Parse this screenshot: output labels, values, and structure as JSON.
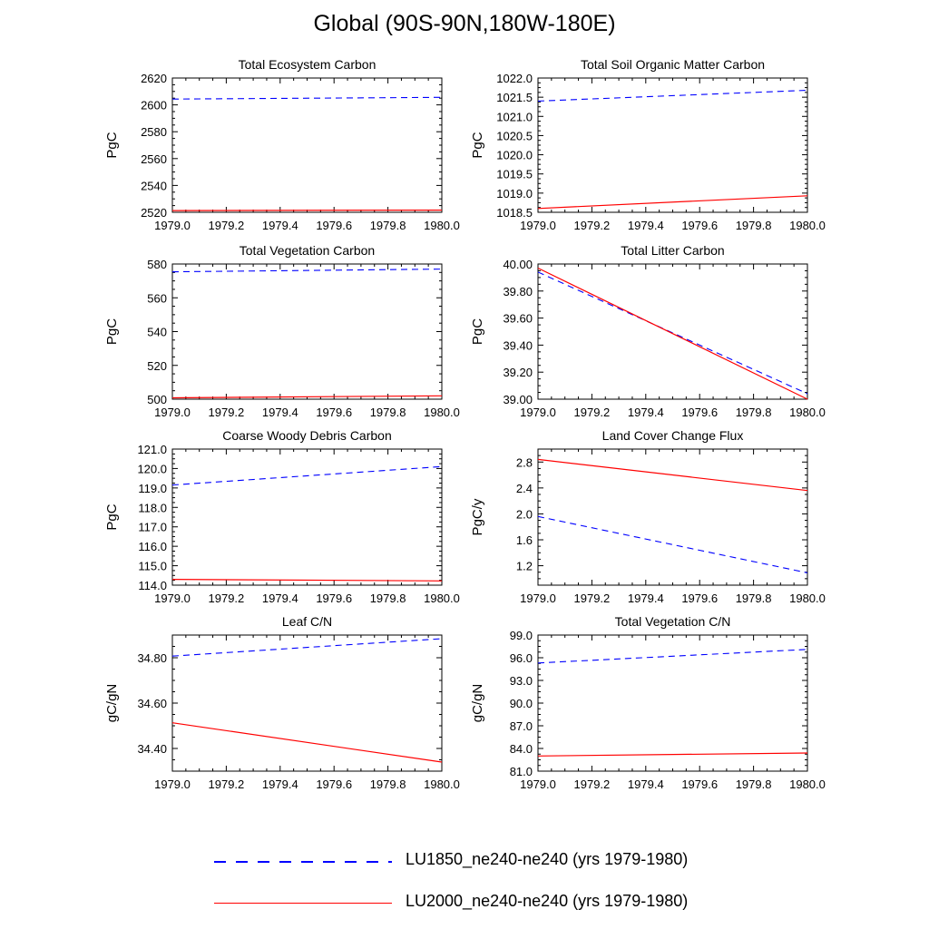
{
  "figure": {
    "title": "Global (90S-90N,180W-180E)"
  },
  "legend": [
    {
      "label": "LU1850_ne240-ne240 (yrs 1979-1980)",
      "color": "#0000ff",
      "style": "dashed"
    },
    {
      "label": "LU2000_ne240-ne240 (yrs 1979-1980)",
      "color": "#ff0000",
      "style": "solid"
    }
  ],
  "chart_data": [
    {
      "type": "line",
      "title": "Total Ecosystem Carbon",
      "ylabel": "PgC",
      "xlim": [
        1979.0,
        1980.0
      ],
      "ylim": [
        2520,
        2620
      ],
      "xticks": [
        "1979.0",
        "1979.2",
        "1979.4",
        "1979.6",
        "1979.8",
        "1980.0"
      ],
      "yticks": [
        "2520",
        "2540",
        "2560",
        "2580",
        "2600",
        "2620"
      ],
      "x": [
        1979.0,
        1980.0
      ],
      "series": [
        {
          "values": [
            2604.3,
            2605.6
          ]
        },
        {
          "values": [
            2521.3,
            2521.6
          ]
        }
      ]
    },
    {
      "type": "line",
      "title": "Total Soil Organic Matter Carbon",
      "ylabel": "PgC",
      "xlim": [
        1979.0,
        1980.0
      ],
      "ylim": [
        1018.5,
        1022.0
      ],
      "xticks": [
        "1979.0",
        "1979.2",
        "1979.4",
        "1979.6",
        "1979.8",
        "1980.0"
      ],
      "yticks": [
        "1018.5",
        "1019.0",
        "1019.5",
        "1020.0",
        "1020.5",
        "1021.0",
        "1021.5",
        "1022.0"
      ],
      "x": [
        1979.0,
        1980.0
      ],
      "series": [
        {
          "values": [
            1021.4,
            1021.68
          ]
        },
        {
          "values": [
            1018.6,
            1018.93
          ]
        }
      ]
    },
    {
      "type": "line",
      "title": "Total Vegetation Carbon",
      "ylabel": "PgC",
      "xlim": [
        1979.0,
        1980.0
      ],
      "ylim": [
        500,
        580
      ],
      "xticks": [
        "1979.0",
        "1979.2",
        "1979.4",
        "1979.6",
        "1979.8",
        "1980.0"
      ],
      "yticks": [
        "500",
        "520",
        "540",
        "560",
        "580"
      ],
      "x": [
        1979.0,
        1980.0
      ],
      "series": [
        {
          "values": [
            575.4,
            577.0
          ]
        },
        {
          "values": [
            500.8,
            502.0
          ]
        }
      ]
    },
    {
      "type": "line",
      "title": "Total Litter Carbon",
      "ylabel": "PgC",
      "xlim": [
        1979.0,
        1980.0
      ],
      "ylim": [
        39.0,
        40.0
      ],
      "xticks": [
        "1979.0",
        "1979.2",
        "1979.4",
        "1979.6",
        "1979.8",
        "1980.0"
      ],
      "yticks": [
        "39.00",
        "39.20",
        "39.40",
        "39.60",
        "39.80",
        "40.00"
      ],
      "x": [
        1979.0,
        1980.0
      ],
      "series": [
        {
          "values": [
            39.94,
            39.04
          ]
        },
        {
          "values": [
            39.97,
            39.0
          ]
        }
      ]
    },
    {
      "type": "line",
      "title": "Coarse Woody Debris Carbon",
      "ylabel": "PgC",
      "xlim": [
        1979.0,
        1980.0
      ],
      "ylim": [
        114.0,
        121.0
      ],
      "xticks": [
        "1979.0",
        "1979.2",
        "1979.4",
        "1979.6",
        "1979.8",
        "1980.0"
      ],
      "yticks": [
        "114.0",
        "115.0",
        "116.0",
        "117.0",
        "118.0",
        "119.0",
        "120.0",
        "121.0"
      ],
      "x": [
        1979.0,
        1980.0
      ],
      "series": [
        {
          "values": [
            119.15,
            120.1
          ]
        },
        {
          "values": [
            114.3,
            114.22
          ]
        }
      ]
    },
    {
      "type": "line",
      "title": "Land Cover Change Flux",
      "ylabel": "PgC/y",
      "xlim": [
        1979.0,
        1980.0
      ],
      "ylim": [
        0.9,
        3.0
      ],
      "xticks": [
        "1979.0",
        "1979.2",
        "1979.4",
        "1979.6",
        "1979.8",
        "1980.0"
      ],
      "yticks": [
        "1.2",
        "1.6",
        "2.0",
        "2.4",
        "2.8"
      ],
      "x": [
        1979.0,
        1980.0
      ],
      "series": [
        {
          "values": [
            1.96,
            1.09
          ]
        },
        {
          "values": [
            2.84,
            2.36
          ]
        }
      ]
    },
    {
      "type": "line",
      "title": "Leaf C/N",
      "ylabel": "gC/gN",
      "xlim": [
        1979.0,
        1980.0
      ],
      "ylim": [
        34.3,
        34.9
      ],
      "xticks": [
        "1979.0",
        "1979.2",
        "1979.4",
        "1979.6",
        "1979.8",
        "1980.0"
      ],
      "yticks": [
        "34.40",
        "34.60",
        "34.80"
      ],
      "x": [
        1979.0,
        1980.0
      ],
      "series": [
        {
          "values": [
            34.807,
            34.884
          ]
        },
        {
          "values": [
            34.513,
            34.34
          ]
        }
      ]
    },
    {
      "type": "line",
      "title": "Total Vegetation C/N",
      "ylabel": "gC/gN",
      "xlim": [
        1979.0,
        1980.0
      ],
      "ylim": [
        81.0,
        99.0
      ],
      "xticks": [
        "1979.0",
        "1979.2",
        "1979.4",
        "1979.6",
        "1979.8",
        "1980.0"
      ],
      "yticks": [
        "81.0",
        "84.0",
        "87.0",
        "90.0",
        "93.0",
        "96.0",
        "99.0"
      ],
      "x": [
        1979.0,
        1980.0
      ],
      "series": [
        {
          "values": [
            95.3,
            97.1
          ]
        },
        {
          "values": [
            83.0,
            83.4
          ]
        }
      ]
    }
  ]
}
